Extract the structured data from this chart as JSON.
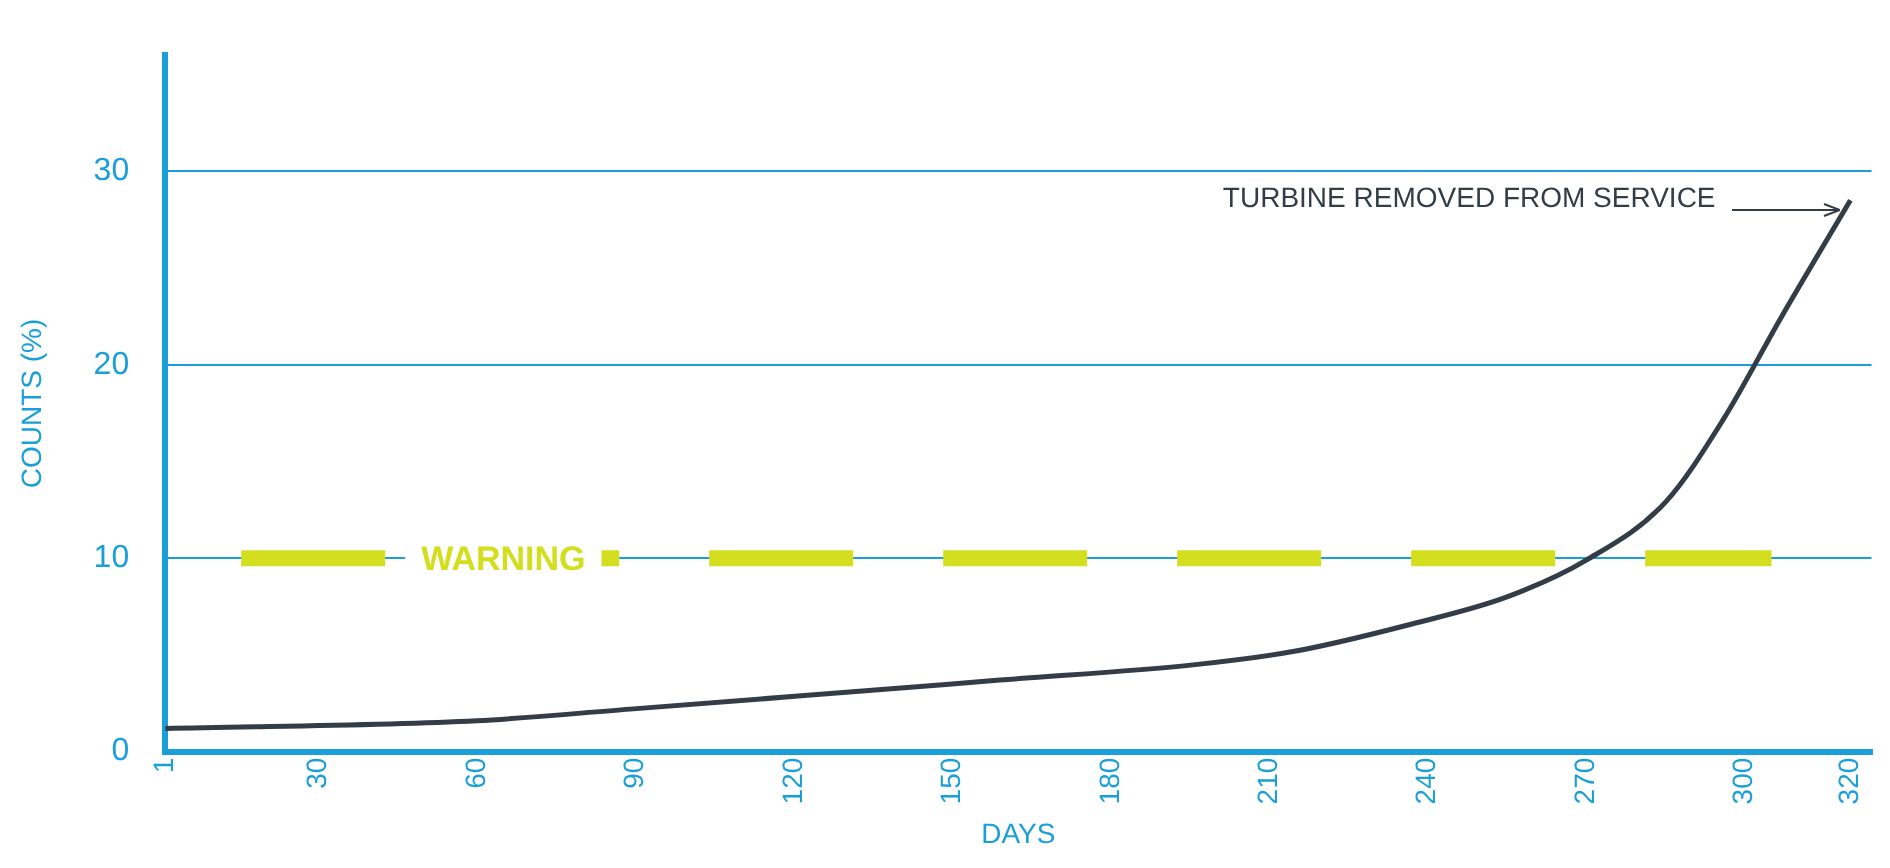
{
  "chart_data": {
    "type": "line",
    "xlabel": "DAYS",
    "ylabel": "COUNTS (%)",
    "x": [
      1,
      60,
      89,
      122,
      159,
      196,
      215,
      237,
      255,
      270,
      285,
      296,
      307,
      320
    ],
    "series": [
      {
        "color": "#333d47",
        "values": [
          1.2,
          1.6,
          2.2,
          2.9,
          3.7,
          4.5,
          5.2,
          6.6,
          8.0,
          9.9,
          12.9,
          17.2,
          22.5,
          28.5
        ]
      }
    ],
    "xlim": [
      1,
      324
    ],
    "xticks": [
      1,
      30,
      60,
      90,
      120,
      150,
      180,
      210,
      240,
      270,
      300,
      320
    ],
    "ylim": [
      0,
      36
    ],
    "yticks": [
      0,
      10,
      20,
      30
    ],
    "grid": "y",
    "marker": "none",
    "line_style": "solid",
    "ref_lines": [
      {
        "axis": "y",
        "value": 10,
        "label": "WARNING",
        "color": "#d3de1e",
        "line_style": "dashed"
      }
    ],
    "annotations": [
      "TURBINE REMOVED FROM SERVICE"
    ]
  }
}
